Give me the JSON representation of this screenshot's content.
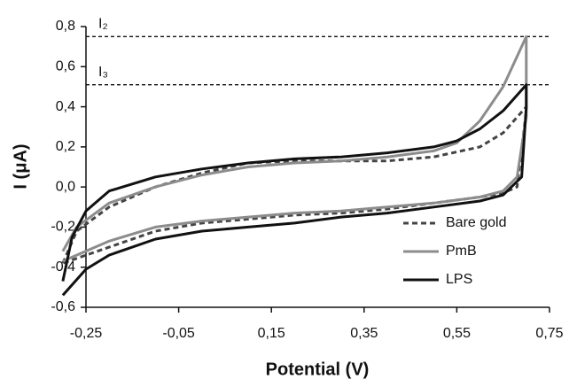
{
  "chart_data": {
    "type": "line",
    "x_label": "Potential (V)",
    "y_label": "I (μA)",
    "xlim": [
      -0.25,
      0.75
    ],
    "ylim": [
      -0.6,
      0.8
    ],
    "xticks": [
      {
        "value": -0.25,
        "label": "-0,25"
      },
      {
        "value": -0.05,
        "label": "-0,05"
      },
      {
        "value": 0.15,
        "label": "0,15"
      },
      {
        "value": 0.35,
        "label": "0,35"
      },
      {
        "value": 0.55,
        "label": "0,55"
      },
      {
        "value": 0.75,
        "label": "0,75"
      }
    ],
    "yticks": [
      {
        "value": -0.6,
        "label": "-0,6"
      },
      {
        "value": -0.4,
        "label": "-0,4"
      },
      {
        "value": -0.2,
        "label": "-0,2"
      },
      {
        "value": 0,
        "label": "0,0"
      },
      {
        "value": 0.2,
        "label": "0,2"
      },
      {
        "value": 0.4,
        "label": "0,4"
      },
      {
        "value": 0.6,
        "label": "0,6"
      },
      {
        "value": 0.8,
        "label": "0,8"
      }
    ],
    "legend": "lower right",
    "hlines": [
      {
        "label": "I₂",
        "value": 0.75
      },
      {
        "label": "I₃",
        "value": 0.51
      }
    ],
    "series": [
      {
        "name": "Bare gold",
        "color": "#444444",
        "style": "dashed",
        "x": [
          -0.3,
          -0.27,
          -0.2,
          -0.1,
          0,
          0.1,
          0.2,
          0.3,
          0.4,
          0.5,
          0.6,
          0.65,
          0.7,
          0.7,
          0.68,
          0.65,
          0.6,
          0.5,
          0.4,
          0.3,
          0.2,
          0.1,
          0,
          -0.1,
          -0.2,
          -0.3
        ],
        "values": [
          -0.38,
          -0.22,
          -0.1,
          0.0,
          0.07,
          0.12,
          0.13,
          0.13,
          0.13,
          0.15,
          0.2,
          0.27,
          0.4,
          0.38,
          0.0,
          -0.03,
          -0.05,
          -0.08,
          -0.11,
          -0.13,
          -0.14,
          -0.16,
          -0.18,
          -0.22,
          -0.3,
          -0.38
        ]
      },
      {
        "name": "PmB",
        "color": "#8c8c8c",
        "style": "solid",
        "x": [
          -0.3,
          -0.27,
          -0.2,
          -0.1,
          0,
          0.1,
          0.2,
          0.3,
          0.4,
          0.5,
          0.55,
          0.6,
          0.65,
          0.7,
          0.7,
          0.68,
          0.65,
          0.6,
          0.5,
          0.4,
          0.3,
          0.2,
          0.1,
          0,
          -0.1,
          -0.2,
          -0.3
        ],
        "values": [
          -0.32,
          -0.2,
          -0.08,
          0.0,
          0.06,
          0.1,
          0.12,
          0.13,
          0.15,
          0.18,
          0.22,
          0.33,
          0.5,
          0.75,
          0.35,
          0.05,
          -0.02,
          -0.05,
          -0.08,
          -0.1,
          -0.12,
          -0.13,
          -0.15,
          -0.17,
          -0.2,
          -0.27,
          -0.37
        ]
      },
      {
        "name": "LPS",
        "color": "#111111",
        "style": "solid",
        "x": [
          -0.3,
          -0.28,
          -0.25,
          -0.2,
          -0.1,
          0,
          0.1,
          0.2,
          0.3,
          0.4,
          0.5,
          0.55,
          0.6,
          0.65,
          0.7,
          0.7,
          0.69,
          0.65,
          0.6,
          0.5,
          0.4,
          0.3,
          0.2,
          0.1,
          0,
          -0.1,
          -0.2,
          -0.25,
          -0.3
        ],
        "values": [
          -0.47,
          -0.25,
          -0.12,
          -0.02,
          0.05,
          0.09,
          0.12,
          0.14,
          0.15,
          0.17,
          0.2,
          0.23,
          0.29,
          0.38,
          0.51,
          0.4,
          0.05,
          -0.04,
          -0.07,
          -0.1,
          -0.13,
          -0.15,
          -0.18,
          -0.2,
          -0.22,
          -0.26,
          -0.34,
          -0.41,
          -0.54
        ]
      }
    ]
  }
}
